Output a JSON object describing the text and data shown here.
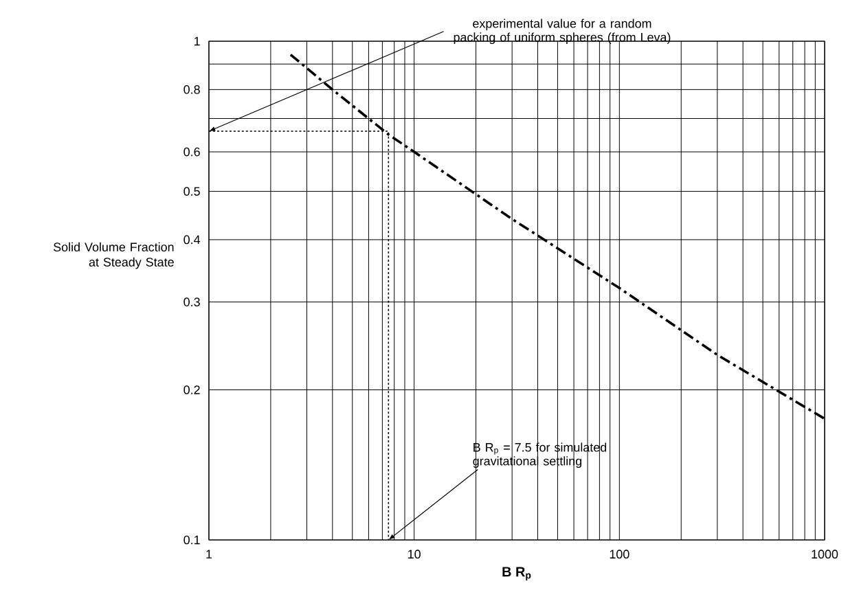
{
  "chart_data": {
    "type": "line",
    "xlabel": "B R$_{p}$",
    "ylabel": "Solid Volume Fraction at Steady State",
    "log": "xy",
    "grid": true,
    "marker": "none",
    "xlim": [
      1,
      1000
    ],
    "ylim": [
      0.1,
      1
    ],
    "xticks": [
      1,
      {
        "value": 2,
        "label": null
      },
      {
        "value": 3,
        "label": null
      },
      {
        "value": 4,
        "label": null
      },
      {
        "value": 5,
        "label": null
      },
      {
        "value": 6,
        "label": null
      },
      {
        "value": 7,
        "label": null
      },
      {
        "value": 8,
        "label": null
      },
      {
        "value": 9,
        "label": null
      },
      10,
      {
        "value": 20,
        "label": null
      },
      {
        "value": 30,
        "label": null
      },
      {
        "value": 40,
        "label": null
      },
      {
        "value": 50,
        "label": null
      },
      {
        "value": 60,
        "label": null
      },
      {
        "value": 70,
        "label": null
      },
      {
        "value": 80,
        "label": null
      },
      {
        "value": 90,
        "label": null
      },
      100,
      {
        "value": 200,
        "label": null
      },
      {
        "value": 300,
        "label": null
      },
      {
        "value": 400,
        "label": null
      },
      {
        "value": 500,
        "label": null
      },
      {
        "value": 600,
        "label": null
      },
      {
        "value": 700,
        "label": null
      },
      {
        "value": 800,
        "label": null
      },
      {
        "value": 900,
        "label": null
      },
      1000
    ],
    "yticks": [
      0.1,
      0.2,
      0.3,
      0.4,
      0.5,
      0.6,
      {
        "value": 0.7,
        "label": null
      },
      0.8,
      {
        "value": 0.9,
        "label": null
      },
      1
    ],
    "series": [
      {
        "color": "#000000",
        "line_style": "dashed",
        "x": [
          2.5,
          4,
          7.5,
          10,
          30,
          100,
          300,
          1000
        ],
        "values": [
          0.94,
          0.8,
          0.65,
          0.6,
          0.44,
          0.32,
          0.235,
          0.175
        ]
      },
      {
        "color": "#000000",
        "line_style": "dotted",
        "x": [
          1,
          7.5,
          7.5
        ],
        "values": [
          0.66,
          0.66,
          0.1
        ]
      }
    ],
    "annotations": [
      {
        "text": "experimental value for a random packing of uniform spheres (from Leva)",
        "x": 1,
        "y": 0.66
      },
      {
        "text": "B R$_{p}$ = 7.5 for simulated gravitational settling",
        "x": 7.5,
        "y": 0.1
      }
    ]
  }
}
